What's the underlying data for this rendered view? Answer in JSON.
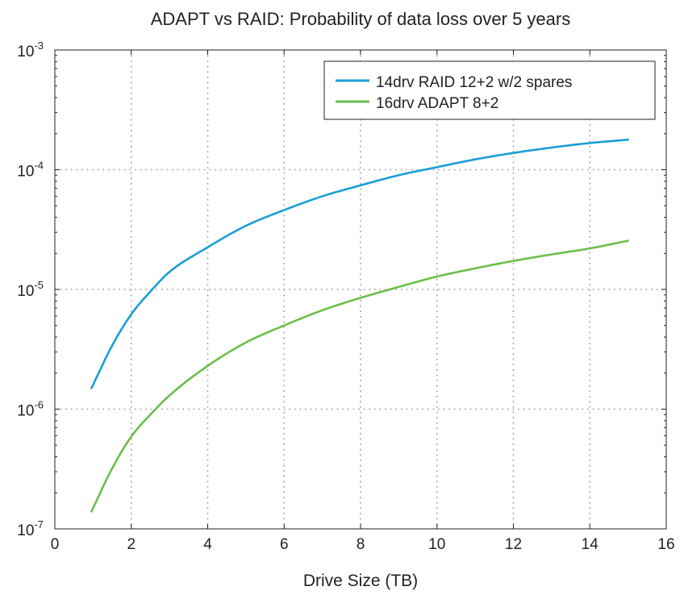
{
  "chart_data": {
    "type": "line",
    "title": "ADAPT vs RAID: Probability of data loss over 5 years",
    "xlabel": "Drive Size (TB)",
    "ylabel": "",
    "yscale": "log",
    "xlim": [
      0,
      16
    ],
    "ylim": [
      1e-07,
      0.001
    ],
    "x_ticks": [
      "0",
      "2",
      "4",
      "6",
      "8",
      "10",
      "12",
      "14",
      "16"
    ],
    "y_ticks": [
      {
        "base": "10",
        "exp": "-7",
        "value": 1e-07
      },
      {
        "base": "10",
        "exp": "-6",
        "value": 1e-06
      },
      {
        "base": "10",
        "exp": "-5",
        "value": 1e-05
      },
      {
        "base": "10",
        "exp": "-4",
        "value": 0.0001
      },
      {
        "base": "10",
        "exp": "-3",
        "value": 0.001
      }
    ],
    "grid": true,
    "legend_position": "top-right",
    "series": [
      {
        "name": "14drv RAID 12+2 w/2 spares",
        "color": "#1a9fd6",
        "x": [
          0.96,
          1.5,
          2,
          2.5,
          3,
          4,
          5,
          6,
          7,
          8,
          9,
          10,
          11,
          12,
          13,
          14,
          15
        ],
        "y": [
          1.5e-06,
          3.4e-06,
          6.2e-06,
          9.6e-06,
          1.4e-05,
          2.25e-05,
          3.4e-05,
          4.6e-05,
          6e-05,
          7.4e-05,
          9e-05,
          0.000105,
          0.000122,
          0.000138,
          0.000153,
          0.000167,
          0.000178
        ]
      },
      {
        "name": "16drv ADAPT 8+2",
        "color": "#6abf4b",
        "x": [
          0.96,
          1.5,
          2,
          2.5,
          3,
          4,
          5,
          6,
          7,
          8,
          9,
          10,
          11,
          12,
          13,
          14,
          15
        ],
        "y": [
          1.4e-07,
          3.2e-07,
          5.9e-07,
          9e-07,
          1.3e-06,
          2.3e-06,
          3.6e-06,
          5e-06,
          6.7e-06,
          8.5e-06,
          1.05e-05,
          1.28e-05,
          1.5e-05,
          1.73e-05,
          1.96e-05,
          2.2e-05,
          2.55e-05
        ]
      }
    ]
  }
}
